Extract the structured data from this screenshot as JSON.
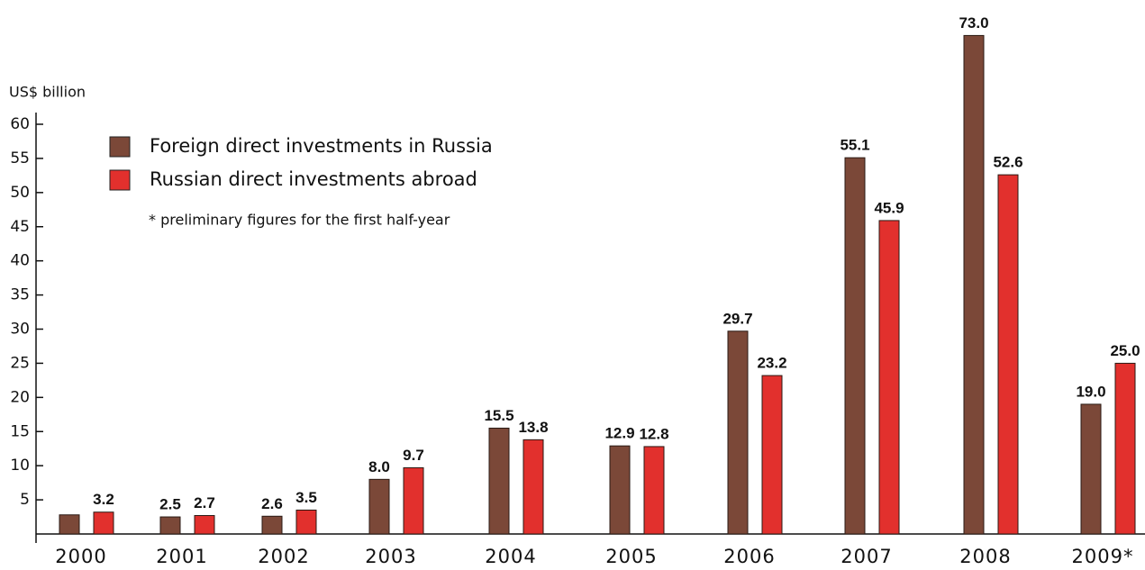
{
  "chart_data": {
    "type": "bar",
    "y_axis_label": "US$ billion",
    "note": "* preliminary figures for the first half-year",
    "categories": [
      "2000",
      "2001",
      "2002",
      "2003",
      "2004",
      "2005",
      "2006",
      "2007",
      "2008",
      "2009*"
    ],
    "series": [
      {
        "name": "Foreign direct investments in Russia",
        "color": "#7b4838",
        "values": [
          2.8,
          2.5,
          2.6,
          8.0,
          15.5,
          12.9,
          29.7,
          55.1,
          73.0,
          19.0
        ],
        "value_labels": [
          null,
          "2.5",
          "2.6",
          "8.0",
          "15.5",
          "12.9",
          "29.7",
          "55.1",
          "73.0",
          "19.0"
        ]
      },
      {
        "name": "Russian direct investments abroad",
        "color": "#e2302d",
        "values": [
          3.2,
          2.7,
          3.5,
          9.7,
          13.8,
          12.8,
          23.2,
          45.9,
          52.6,
          25.0
        ],
        "value_labels": [
          "3.2",
          "2.7",
          "3.5",
          "9.7",
          "13.8",
          "12.8",
          "23.2",
          "45.9",
          "52.6",
          "25.0"
        ]
      }
    ],
    "ylim": [
      0,
      60
    ],
    "yticks": [
      5,
      10,
      15,
      20,
      25,
      30,
      35,
      40,
      45,
      50,
      55,
      60
    ],
    "legend": "upper left"
  }
}
